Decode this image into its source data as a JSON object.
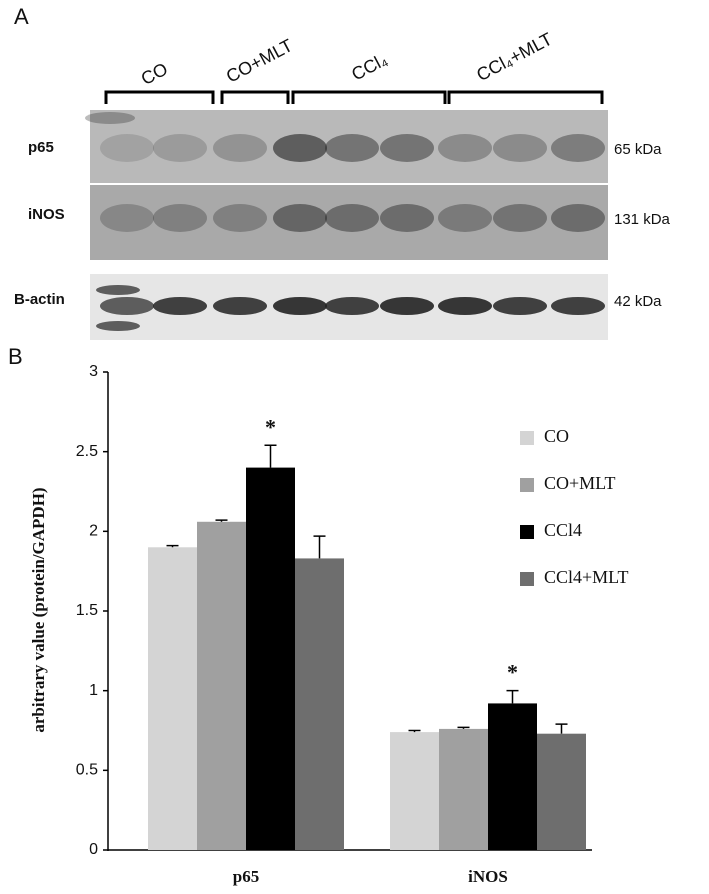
{
  "panel_a": {
    "label": "A",
    "groups": [
      "CO",
      "CO+MLT",
      "CCl₄",
      "CCl₄+MLT"
    ],
    "rows": [
      {
        "name": "p65",
        "size": "65 kDa"
      },
      {
        "name": "iNOS",
        "size": "131 kDa"
      },
      {
        "name": "B-actin",
        "size": "42 kDa"
      }
    ]
  },
  "chart_data": {
    "type": "bar",
    "panel_label": "B",
    "ylabel": "arbitrary value (protein/GAPDH)",
    "categories": [
      "p65",
      "iNOS"
    ],
    "series": [
      {
        "name": "CO",
        "color": "#d4d4d4",
        "values": [
          1.9,
          0.74
        ],
        "errors": [
          0.01,
          0.01
        ]
      },
      {
        "name": "CO+MLT",
        "color": "#a0a0a0",
        "values": [
          2.06,
          0.76
        ],
        "errors": [
          0.01,
          0.01
        ]
      },
      {
        "name": "CCl4",
        "color": "#000000",
        "values": [
          2.4,
          0.92
        ],
        "errors": [
          0.14,
          0.08
        ]
      },
      {
        "name": "CCl4+MLT",
        "color": "#6e6e6e",
        "values": [
          1.83,
          0.73
        ],
        "errors": [
          0.14,
          0.06
        ]
      }
    ],
    "ylim": [
      0,
      3
    ],
    "yticks": [
      0,
      0.5,
      1,
      1.5,
      2,
      2.5,
      3
    ],
    "annotations": [
      {
        "text": "*",
        "x": "p65",
        "series": "CCl4"
      },
      {
        "text": "*",
        "x": "iNOS",
        "series": "CCl4"
      }
    ],
    "legend": "right"
  }
}
